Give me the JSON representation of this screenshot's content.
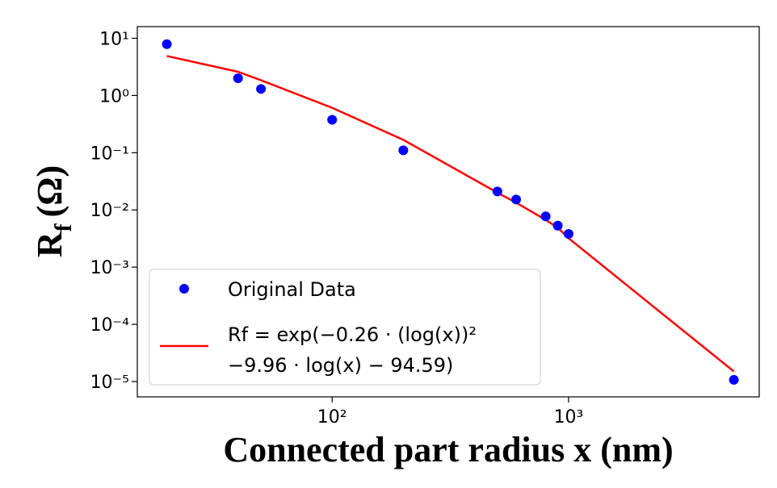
{
  "chart_data": {
    "type": "scatter_line",
    "xlabel": "Connected part radius x (nm)",
    "ylabel": [
      "R",
      "f",
      "(Ω)"
    ],
    "xscale": "log",
    "yscale": "log",
    "xlim": [
      15,
      6400
    ],
    "ylim": [
      5.4e-06,
      16
    ],
    "xticks": [
      {
        "value": 100,
        "label": "10²"
      },
      {
        "value": 1000,
        "label": "10³"
      }
    ],
    "yticks": [
      {
        "value": 1e-05,
        "label": "10⁻⁵"
      },
      {
        "value": 0.0001,
        "label": "10⁻⁴"
      },
      {
        "value": 0.001,
        "label": "10⁻³"
      },
      {
        "value": 0.01,
        "label": "10⁻²"
      },
      {
        "value": 0.1,
        "label": "10⁻¹"
      },
      {
        "value": 1,
        "label": "10⁰"
      },
      {
        "value": 10,
        "label": "10¹"
      }
    ],
    "legend": "lower left",
    "series": [
      {
        "name": [
          "Original Data"
        ],
        "kind": "scatter",
        "color": "#0000ff",
        "x": [
          20,
          40,
          50,
          100,
          200,
          500,
          600,
          800,
          900,
          1000,
          5000
        ],
        "values": [
          7.9,
          2.0,
          1.3,
          0.377,
          0.11,
          0.021,
          0.0152,
          0.0077,
          0.0053,
          0.0038,
          1.07e-05
        ]
      },
      {
        "name": [
          "Rf = exp(−0.26 · (log(x))²",
          "−9.96 · log(x) − 94.59)"
        ],
        "kind": "line",
        "color": "#ff0000",
        "x": [
          20,
          40,
          50,
          100,
          200,
          500,
          600,
          800,
          900,
          1000,
          5000
        ],
        "values": [
          4.9,
          2.6,
          1.85,
          0.61,
          0.168,
          0.02,
          0.0134,
          0.0067,
          0.0049,
          0.0032,
          1.5e-05
        ]
      }
    ]
  }
}
